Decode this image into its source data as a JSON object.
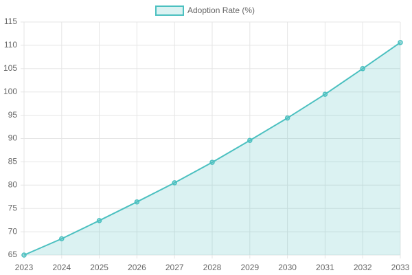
{
  "chart_data": {
    "type": "line",
    "categories": [
      "2023",
      "2024",
      "2025",
      "2026",
      "2027",
      "2028",
      "2029",
      "2030",
      "2031",
      "2032",
      "2033"
    ],
    "series": [
      {
        "name": "Adoption Rate (%)",
        "color": "#4bc0c0",
        "fill": true,
        "values": [
          65,
          68.5,
          72.4,
          76.4,
          80.5,
          84.9,
          89.6,
          94.4,
          99.5,
          105.0,
          110.6
        ]
      }
    ],
    "ylim": [
      65,
      115
    ],
    "yticks": [
      65,
      70,
      75,
      80,
      85,
      90,
      95,
      100,
      105,
      110,
      115
    ],
    "grid": true,
    "legend": "top"
  }
}
